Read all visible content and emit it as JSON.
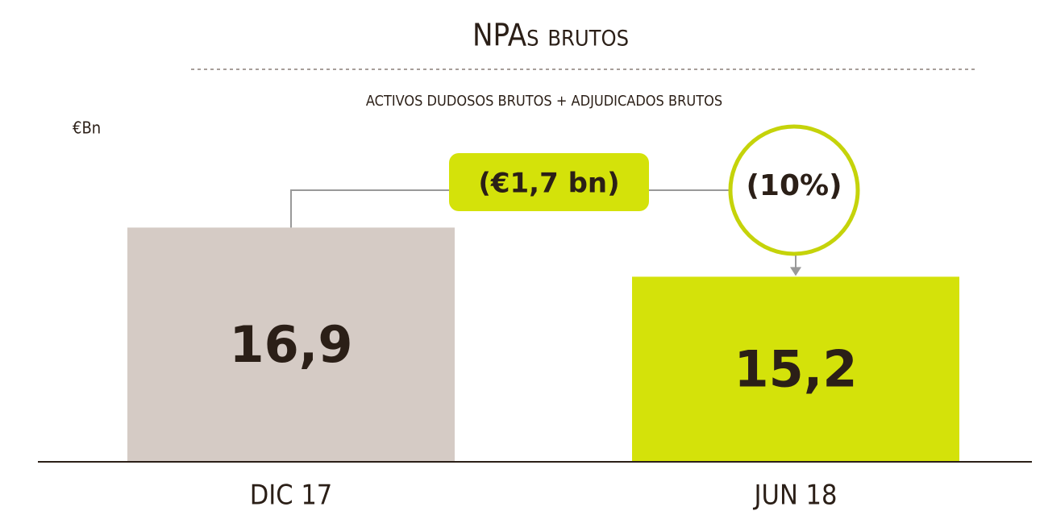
{
  "chart_data": {
    "type": "bar",
    "title": "NPAs brutos",
    "subtitle": "ACTIVOS DUDOSOS BRUTOS  + ADJUDICADOS BRUTOS",
    "unit_label": "€Bn",
    "categories": [
      "DIC 17",
      "JUN 18"
    ],
    "values": [
      16.9,
      15.2
    ],
    "value_labels": [
      "16,9",
      "15,2"
    ],
    "colors": [
      "#d5cbc5",
      "#d4e20a"
    ],
    "ylim": [
      8.8,
      19
    ],
    "annotations": [
      "(€1,7 bn)",
      "(10%)"
    ]
  }
}
